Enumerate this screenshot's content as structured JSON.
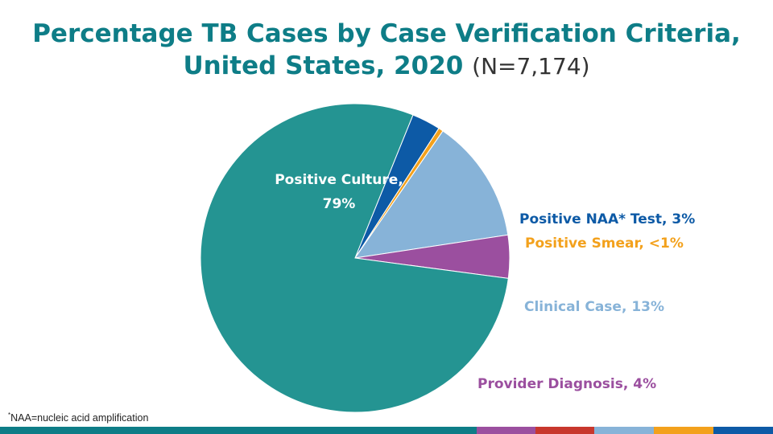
{
  "title_line1": "Percentage TB Cases by Case Verification Criteria,",
  "title_line2": "United States, 2020",
  "title_n": "(N=7,174)",
  "footnote_mark": "*",
  "footnote_text": "NAA=nucleic acid amplification",
  "chart_data": {
    "type": "pie",
    "slices": [
      {
        "name": "Positive Culture",
        "label": "Positive Culture,",
        "label2": "79%",
        "value": 79,
        "color": "#249492",
        "label_color": "#ffffff"
      },
      {
        "name": "Positive NAA* Test",
        "label": "Positive NAA* Test, 3%",
        "value": 3,
        "color": "#0d5aa6",
        "label_color": "#0d5aa6"
      },
      {
        "name": "Positive Smear",
        "label": "Positive Smear, <1%",
        "value": 0.5,
        "color": "#f3a11c",
        "label_color": "#f3a11c"
      },
      {
        "name": "Clinical Case",
        "label": "Clinical Case, 13%",
        "value": 13,
        "color": "#87b3d8",
        "label_color": "#87b3d8"
      },
      {
        "name": "Provider Diagnosis",
        "label": "Provider Diagnosis, 4%",
        "value": 4.5,
        "color": "#9b4f9f",
        "label_color": "#9b4f9f"
      }
    ]
  },
  "bottom_bar_colors": [
    "#0e7d87",
    "#9b4f9f",
    "#c8372d",
    "#87b3d8",
    "#f3a11c",
    "#0d5aa6"
  ]
}
